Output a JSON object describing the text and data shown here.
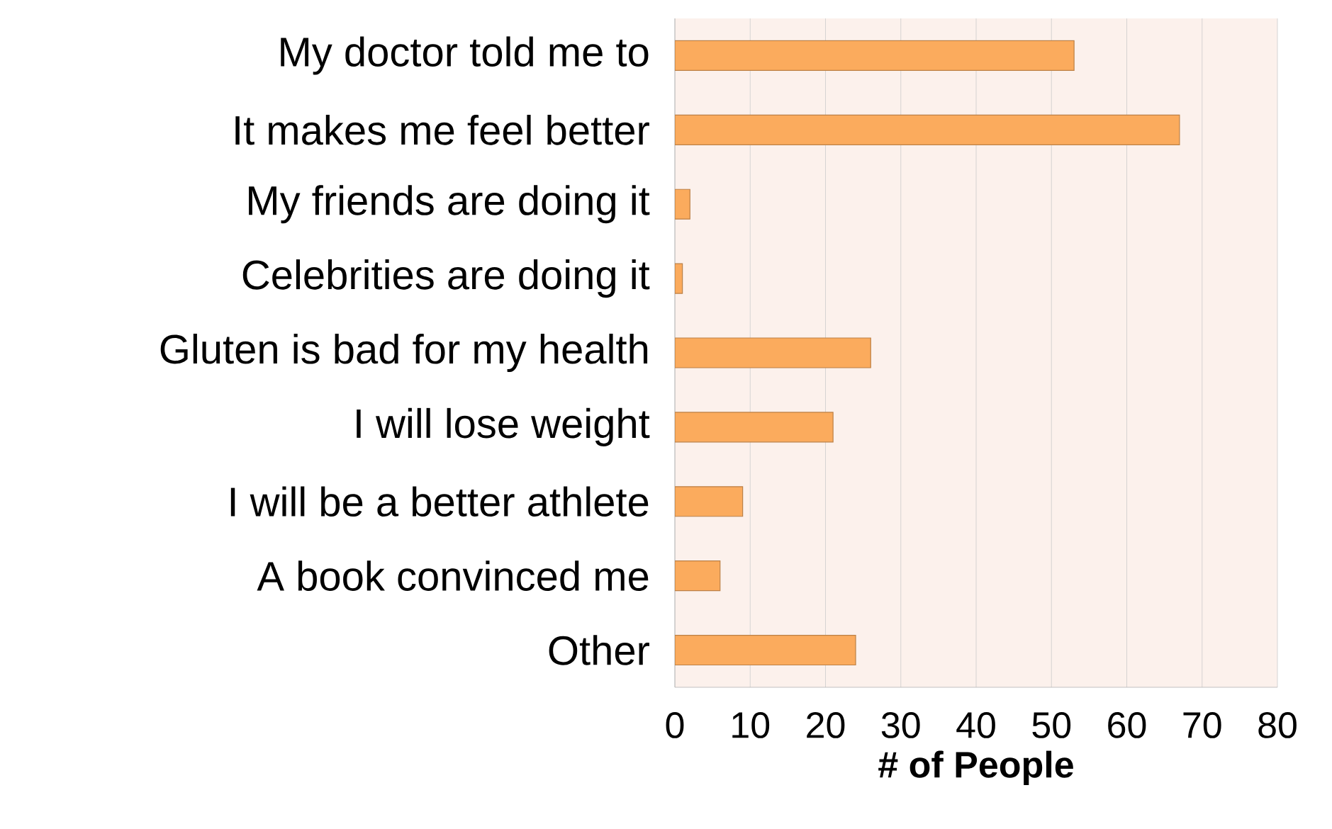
{
  "chart_data": {
    "type": "bar",
    "orientation": "horizontal",
    "categories": [
      "My doctor told me to",
      "It makes me feel better",
      "My friends are doing it",
      "Celebrities are doing it",
      "Gluten is bad for my health",
      "I will lose weight",
      "I will be a better athlete",
      "A book convinced me",
      "Other"
    ],
    "values": [
      53,
      67,
      2,
      1,
      26,
      21,
      9,
      6,
      24
    ],
    "color": "#fbab5d",
    "xlabel": "# of People",
    "xlim": [
      0,
      80
    ],
    "xticks": [
      0,
      10,
      20,
      30,
      40,
      50,
      60,
      70,
      80
    ],
    "grid": "x"
  }
}
